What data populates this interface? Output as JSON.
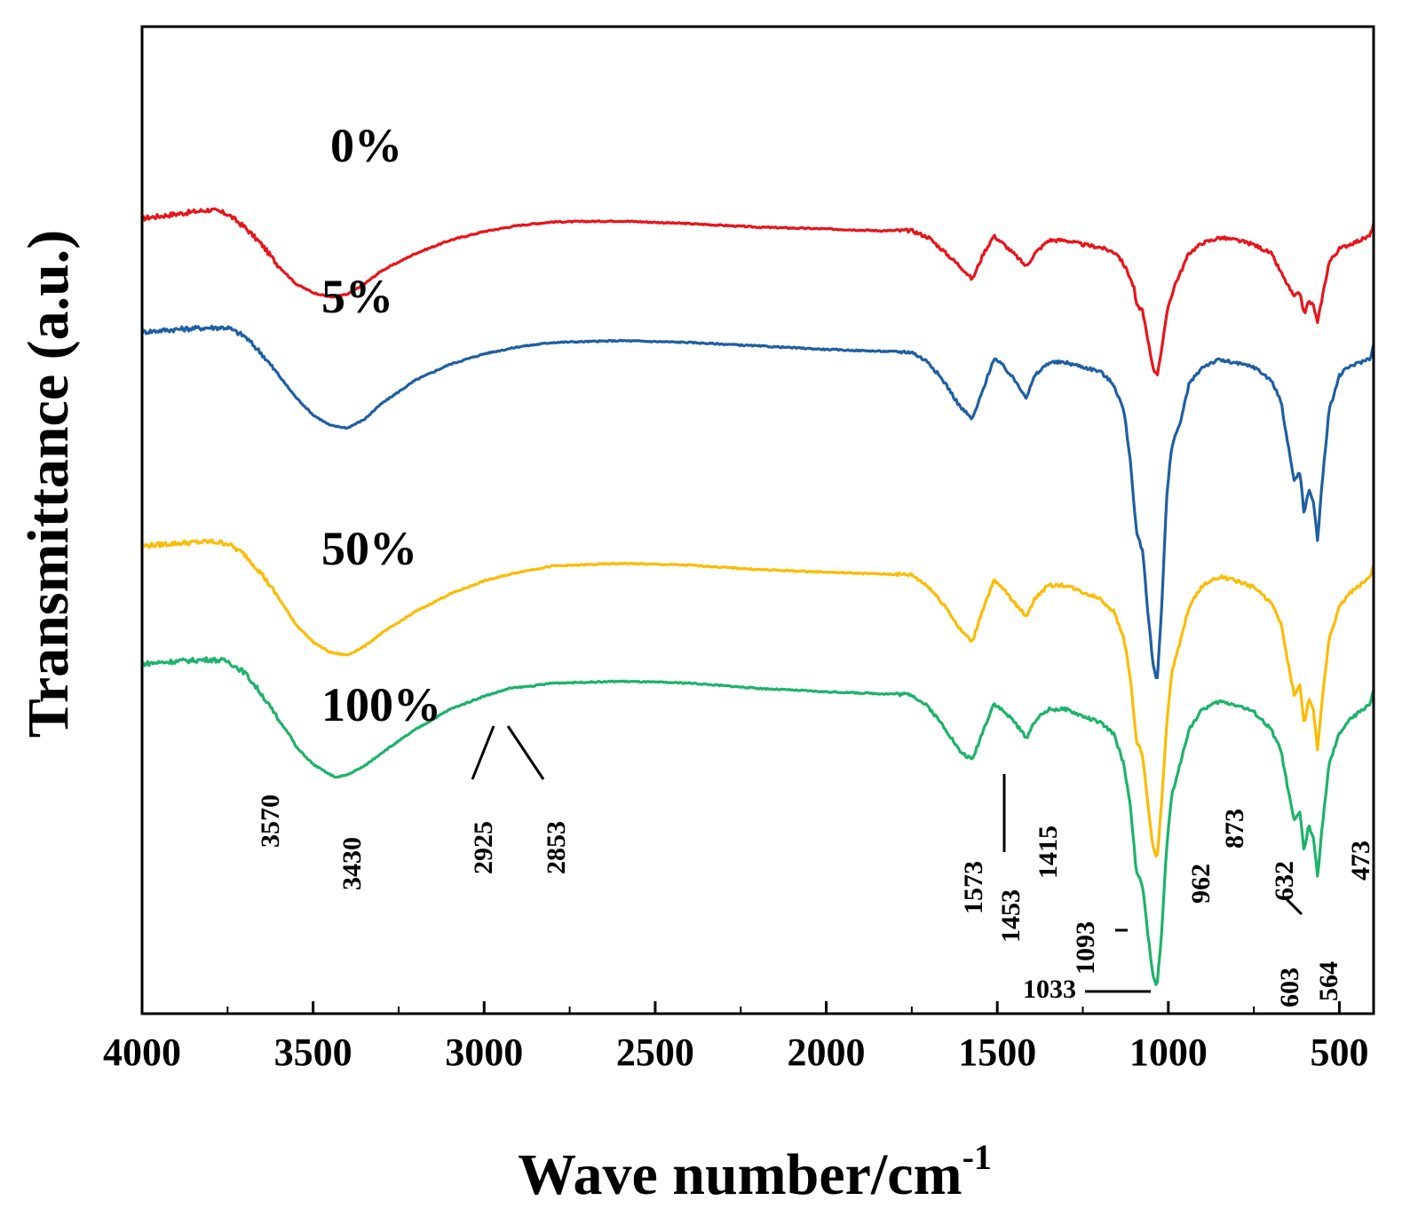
{
  "chart_data": {
    "type": "line",
    "title": "",
    "xlabel": "Wave number/cm",
    "xlabel_superscript": "-1",
    "ylabel": "Transmittance (a.u.)",
    "xlim": [
      4000,
      400
    ],
    "x_reversed": true,
    "xticks": [
      4000,
      3500,
      3000,
      2500,
      2000,
      1500,
      1000,
      500
    ],
    "xtick_labels": [
      "4000",
      "3500",
      "3000",
      "2500",
      "2000",
      "1500",
      "1000",
      "500"
    ],
    "ylim": [
      0,
      100
    ],
    "y_tick_labels_shown": false,
    "grid": false,
    "legend": "none (series labelled inline)",
    "series": [
      {
        "name": "0%",
        "color": "#e8141b",
        "points": [
          [
            4000,
            88
          ],
          [
            3900,
            88.5
          ],
          [
            3800,
            89
          ],
          [
            3750,
            88.5
          ],
          [
            3700,
            87
          ],
          [
            3650,
            85
          ],
          [
            3600,
            82.5
          ],
          [
            3550,
            80.5
          ],
          [
            3500,
            79.5
          ],
          [
            3450,
            79
          ],
          [
            3400,
            79.3
          ],
          [
            3350,
            80.5
          ],
          [
            3300,
            82
          ],
          [
            3200,
            84
          ],
          [
            3100,
            85.5
          ],
          [
            3000,
            86.5
          ],
          [
            2900,
            87.2
          ],
          [
            2800,
            87.6
          ],
          [
            2600,
            87.7
          ],
          [
            2400,
            87.4
          ],
          [
            2200,
            87
          ],
          [
            2000,
            86.8
          ],
          [
            1850,
            86.6
          ],
          [
            1750,
            86.6
          ],
          [
            1700,
            85.8
          ],
          [
            1650,
            84
          ],
          [
            1600,
            82.2
          ],
          [
            1573,
            81
          ],
          [
            1540,
            84
          ],
          [
            1510,
            86
          ],
          [
            1480,
            85
          ],
          [
            1440,
            83.5
          ],
          [
            1415,
            82.5
          ],
          [
            1390,
            84
          ],
          [
            1350,
            85.5
          ],
          [
            1300,
            85.5
          ],
          [
            1250,
            85
          ],
          [
            1200,
            84.7
          ],
          [
            1150,
            84
          ],
          [
            1120,
            82
          ],
          [
            1100,
            80
          ],
          [
            1093,
            78
          ],
          [
            1075,
            77.5
          ],
          [
            1060,
            74
          ],
          [
            1045,
            71
          ],
          [
            1033,
            70
          ],
          [
            1020,
            73
          ],
          [
            1000,
            78
          ],
          [
            980,
            80.5
          ],
          [
            962,
            82
          ],
          [
            940,
            84
          ],
          [
            900,
            85.2
          ],
          [
            873,
            85.5
          ],
          [
            850,
            85.8
          ],
          [
            800,
            85.5
          ],
          [
            750,
            85
          ],
          [
            700,
            84
          ],
          [
            660,
            81
          ],
          [
            632,
            79
          ],
          [
            615,
            79.5
          ],
          [
            603,
            77
          ],
          [
            590,
            78.5
          ],
          [
            575,
            78
          ],
          [
            564,
            76
          ],
          [
            550,
            79
          ],
          [
            530,
            83
          ],
          [
            500,
            84.5
          ],
          [
            473,
            85
          ],
          [
            440,
            85.5
          ],
          [
            410,
            86
          ],
          [
            400,
            87.5
          ]
        ]
      },
      {
        "name": "5%",
        "color": "#1f5fa2",
        "points": [
          [
            4000,
            75
          ],
          [
            3900,
            75.3
          ],
          [
            3800,
            75.5
          ],
          [
            3750,
            75.5
          ],
          [
            3700,
            74.5
          ],
          [
            3650,
            72.5
          ],
          [
            3600,
            70
          ],
          [
            3550,
            67.5
          ],
          [
            3500,
            65.5
          ],
          [
            3450,
            64.3
          ],
          [
            3400,
            64
          ],
          [
            3350,
            65
          ],
          [
            3300,
            66.8
          ],
          [
            3200,
            69.5
          ],
          [
            3100,
            71.3
          ],
          [
            3000,
            72.5
          ],
          [
            2900,
            73.3
          ],
          [
            2800,
            73.8
          ],
          [
            2600,
            74
          ],
          [
            2400,
            73.8
          ],
          [
            2200,
            73.4
          ],
          [
            2000,
            73
          ],
          [
            1850,
            72.8
          ],
          [
            1750,
            72.7
          ],
          [
            1700,
            71.5
          ],
          [
            1650,
            69
          ],
          [
            1610,
            66.5
          ],
          [
            1573,
            65
          ],
          [
            1545,
            68
          ],
          [
            1510,
            72
          ],
          [
            1480,
            71
          ],
          [
            1440,
            69
          ],
          [
            1415,
            67.5
          ],
          [
            1390,
            70
          ],
          [
            1350,
            71.5
          ],
          [
            1300,
            71.5
          ],
          [
            1250,
            71
          ],
          [
            1200,
            70.5
          ],
          [
            1160,
            69
          ],
          [
            1130,
            66
          ],
          [
            1110,
            60
          ],
          [
            1100,
            55
          ],
          [
            1093,
            52
          ],
          [
            1085,
            51
          ],
          [
            1075,
            50
          ],
          [
            1060,
            43
          ],
          [
            1045,
            37
          ],
          [
            1033,
            35
          ],
          [
            1020,
            43
          ],
          [
            1005,
            56
          ],
          [
            990,
            62
          ],
          [
            962,
            65
          ],
          [
            940,
            69
          ],
          [
            900,
            71
          ],
          [
            873,
            71.5
          ],
          [
            850,
            71.8
          ],
          [
            800,
            71.4
          ],
          [
            750,
            71
          ],
          [
            700,
            69.5
          ],
          [
            670,
            67
          ],
          [
            650,
            62
          ],
          [
            632,
            58
          ],
          [
            615,
            59
          ],
          [
            603,
            54
          ],
          [
            590,
            57
          ],
          [
            575,
            55.5
          ],
          [
            564,
            51
          ],
          [
            550,
            58
          ],
          [
            530,
            66
          ],
          [
            500,
            70
          ],
          [
            473,
            71
          ],
          [
            440,
            71.5
          ],
          [
            410,
            72
          ],
          [
            400,
            73.5
          ]
        ]
      },
      {
        "name": "50%",
        "color": "#fbbc04",
        "points": [
          [
            4000,
            50.5
          ],
          [
            3900,
            50.8
          ],
          [
            3800,
            51
          ],
          [
            3750,
            50.8
          ],
          [
            3700,
            49.5
          ],
          [
            3650,
            47.3
          ],
          [
            3600,
            44.5
          ],
          [
            3550,
            41.5
          ],
          [
            3500,
            39.5
          ],
          [
            3450,
            38.3
          ],
          [
            3400,
            38
          ],
          [
            3350,
            39
          ],
          [
            3300,
            40.5
          ],
          [
            3200,
            43
          ],
          [
            3100,
            45
          ],
          [
            3000,
            46.5
          ],
          [
            2900,
            47.5
          ],
          [
            2800,
            48.2
          ],
          [
            2600,
            48.5
          ],
          [
            2400,
            48.3
          ],
          [
            2200,
            47.8
          ],
          [
            2000,
            47.5
          ],
          [
            1850,
            47.3
          ],
          [
            1750,
            47.2
          ],
          [
            1700,
            45.8
          ],
          [
            1650,
            43.5
          ],
          [
            1610,
            41
          ],
          [
            1573,
            39.5
          ],
          [
            1545,
            43
          ],
          [
            1510,
            46.5
          ],
          [
            1480,
            45.5
          ],
          [
            1440,
            43.5
          ],
          [
            1415,
            42.5
          ],
          [
            1390,
            44.5
          ],
          [
            1350,
            46
          ],
          [
            1300,
            46
          ],
          [
            1250,
            45.2
          ],
          [
            1200,
            44.5
          ],
          [
            1160,
            43
          ],
          [
            1130,
            40
          ],
          [
            1110,
            35
          ],
          [
            1100,
            31
          ],
          [
            1093,
            28
          ],
          [
            1085,
            27.5
          ],
          [
            1075,
            26.5
          ],
          [
            1060,
            21
          ],
          [
            1045,
            16
          ],
          [
            1033,
            14.5
          ],
          [
            1020,
            21
          ],
          [
            1005,
            30
          ],
          [
            990,
            36
          ],
          [
            962,
            40
          ],
          [
            940,
            43.5
          ],
          [
            900,
            46
          ],
          [
            873,
            46.5
          ],
          [
            850,
            47
          ],
          [
            800,
            46.5
          ],
          [
            750,
            45.8
          ],
          [
            700,
            44
          ],
          [
            670,
            41.5
          ],
          [
            650,
            37
          ],
          [
            632,
            33.5
          ],
          [
            615,
            34.5
          ],
          [
            603,
            30
          ],
          [
            590,
            33
          ],
          [
            575,
            31.5
          ],
          [
            564,
            27
          ],
          [
            550,
            33
          ],
          [
            530,
            40
          ],
          [
            500,
            43.5
          ],
          [
            473,
            45
          ],
          [
            440,
            46
          ],
          [
            410,
            47
          ],
          [
            400,
            48.5
          ]
        ]
      },
      {
        "name": "100%",
        "color": "#1db36a",
        "points": [
          [
            4000,
            37
          ],
          [
            3900,
            37.3
          ],
          [
            3800,
            37.5
          ],
          [
            3750,
            37.3
          ],
          [
            3700,
            36
          ],
          [
            3650,
            33.5
          ],
          [
            3600,
            30.5
          ],
          [
            3570,
            29
          ],
          [
            3550,
            27.5
          ],
          [
            3500,
            25.5
          ],
          [
            3450,
            24.3
          ],
          [
            3430,
            24
          ],
          [
            3400,
            24.3
          ],
          [
            3350,
            25.3
          ],
          [
            3300,
            26.8
          ],
          [
            3200,
            29.5
          ],
          [
            3100,
            31.8
          ],
          [
            3000,
            33.3
          ],
          [
            2925,
            34.2
          ],
          [
            2853,
            34.5
          ],
          [
            2800,
            34.8
          ],
          [
            2600,
            35
          ],
          [
            2400,
            34.8
          ],
          [
            2200,
            34.2
          ],
          [
            2000,
            33.8
          ],
          [
            1850,
            33.6
          ],
          [
            1750,
            33.5
          ],
          [
            1700,
            32
          ],
          [
            1650,
            29.5
          ],
          [
            1610,
            27
          ],
          [
            1573,
            26
          ],
          [
            1545,
            29
          ],
          [
            1510,
            32.5
          ],
          [
            1480,
            31.5
          ],
          [
            1453,
            30.5
          ],
          [
            1415,
            28.5
          ],
          [
            1390,
            30.5
          ],
          [
            1350,
            31.8
          ],
          [
            1300,
            31.8
          ],
          [
            1250,
            31
          ],
          [
            1200,
            30.3
          ],
          [
            1160,
            29
          ],
          [
            1130,
            25.5
          ],
          [
            1110,
            20.5
          ],
          [
            1100,
            16
          ],
          [
            1093,
            13
          ],
          [
            1085,
            12.5
          ],
          [
            1075,
            11.5
          ],
          [
            1060,
            6
          ],
          [
            1045,
            1.5
          ],
          [
            1033,
            0
          ],
          [
            1020,
            6
          ],
          [
            1005,
            16
          ],
          [
            990,
            22
          ],
          [
            962,
            26
          ],
          [
            940,
            29.5
          ],
          [
            900,
            31.8
          ],
          [
            873,
            32.3
          ],
          [
            850,
            32.7
          ],
          [
            800,
            32.3
          ],
          [
            750,
            31.5
          ],
          [
            700,
            29.5
          ],
          [
            670,
            27
          ],
          [
            650,
            22.5
          ],
          [
            632,
            19
          ],
          [
            615,
            20
          ],
          [
            603,
            15.5
          ],
          [
            590,
            18.5
          ],
          [
            575,
            17
          ],
          [
            564,
            12.5
          ],
          [
            550,
            18.5
          ],
          [
            530,
            25.5
          ],
          [
            500,
            29
          ],
          [
            473,
            30.5
          ],
          [
            440,
            31.5
          ],
          [
            410,
            32.5
          ],
          [
            400,
            34
          ]
        ]
      }
    ],
    "series_label_text": [
      "0%",
      "5%",
      "50%",
      "100%"
    ],
    "peak_annotations": [
      {
        "label": "3570",
        "x": 3570
      },
      {
        "label": "3430",
        "x": 3430
      },
      {
        "label": "2925",
        "x": 2925
      },
      {
        "label": "2853",
        "x": 2853
      },
      {
        "label": "1573",
        "x": 1573
      },
      {
        "label": "1453",
        "x": 1453
      },
      {
        "label": "1415",
        "x": 1415
      },
      {
        "label": "1093",
        "x": 1093
      },
      {
        "label": "1033",
        "x": 1033
      },
      {
        "label": "962",
        "x": 962
      },
      {
        "label": "873",
        "x": 873
      },
      {
        "label": "632",
        "x": 632
      },
      {
        "label": "603",
        "x": 603
      },
      {
        "label": "564",
        "x": 564
      },
      {
        "label": "473",
        "x": 473
      }
    ]
  }
}
